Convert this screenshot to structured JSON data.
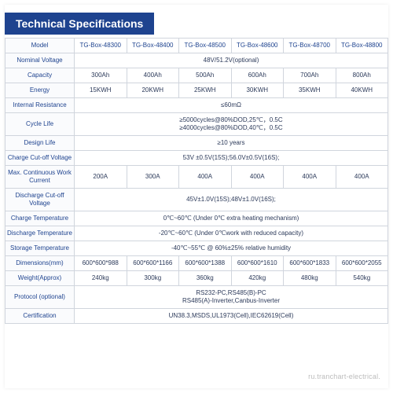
{
  "title": "Technical Specifications",
  "colors": {
    "header_bg": "#1e438f",
    "header_fg": "#ffffff",
    "border": "#d0d5dd",
    "label_fg": "#1e438f",
    "cell_fg": "#2c3a5a"
  },
  "columns": [
    "TG-Box-48300",
    "TG-Box-48400",
    "TG-Box-48500",
    "TG-Box-48600",
    "TG-Box-48700",
    "TG-Box-48800"
  ],
  "rows": [
    {
      "label": "Model",
      "span": false,
      "cells": [
        "TG-Box-48300",
        "TG-Box-48400",
        "TG-Box-48500",
        "TG-Box-48600",
        "TG-Box-48700",
        "TG-Box-48800"
      ]
    },
    {
      "label": "Nominal Voltage",
      "span": true,
      "value": "48V/51.2V(optional)"
    },
    {
      "label": "Capacity",
      "span": false,
      "cells": [
        "300Ah",
        "400Ah",
        "500Ah",
        "600Ah",
        "700Ah",
        "800Ah"
      ]
    },
    {
      "label": "Energy",
      "span": false,
      "cells": [
        "15KWH",
        "20KWH",
        "25KWH",
        "30KWH",
        "35KWH",
        "40KWH"
      ]
    },
    {
      "label": "Internal Resistance",
      "span": true,
      "value": "≤60mΩ"
    },
    {
      "label": "Cycle Life",
      "span": true,
      "value": "≥5000cycles@80%DOD,25℃，0.5C\n≥4000cycles@80%DOD,40℃，0.5C"
    },
    {
      "label": "Design Life",
      "span": true,
      "value": "≥10 years"
    },
    {
      "label": "Charge Cut-off Voltage",
      "span": true,
      "value": "53V ±0.5V(15S);56.0V±0.5V(16S);"
    },
    {
      "label": "Max. Continuous Work Current",
      "span": false,
      "cells": [
        "200A",
        "300A",
        "400A",
        "400A",
        "400A",
        "400A"
      ]
    },
    {
      "label": "Discharge Cut-off Voltage",
      "span": true,
      "value": "45V±1.0V(15S);48V±1.0V(16S);"
    },
    {
      "label": "Charge Temperature",
      "span": true,
      "value": "0℃~60℃ (Under 0℃ extra heating mechanism)"
    },
    {
      "label": "Discharge Temperature",
      "span": true,
      "value": "-20℃~60℃ (Under 0℃work with reduced capacity)"
    },
    {
      "label": "Storage Temperature",
      "span": true,
      "value": "-40℃~55℃ @ 60%±25% relative humidity"
    },
    {
      "label": "Dimensions(mm)",
      "span": false,
      "cells": [
        "600*600*988",
        "600*600*1166",
        "600*600*1388",
        "600*600*1610",
        "600*600*1833",
        "600*600*2055"
      ]
    },
    {
      "label": "Weight(Approx)",
      "span": false,
      "cells": [
        "240kg",
        "300kg",
        "360kg",
        "420kg",
        "480kg",
        "540kg"
      ]
    },
    {
      "label": "Protocol (optional)",
      "span": true,
      "value": "RS232-PC,RS485(B)-PC\nRS485(A)-Inverter,Canbus-Inverter"
    },
    {
      "label": "Certification",
      "span": true,
      "value": "UN38.3,MSDS,UL1973(Cell),IEC62619(Cell)"
    }
  ],
  "watermark": "ru.tranchart-electrical."
}
